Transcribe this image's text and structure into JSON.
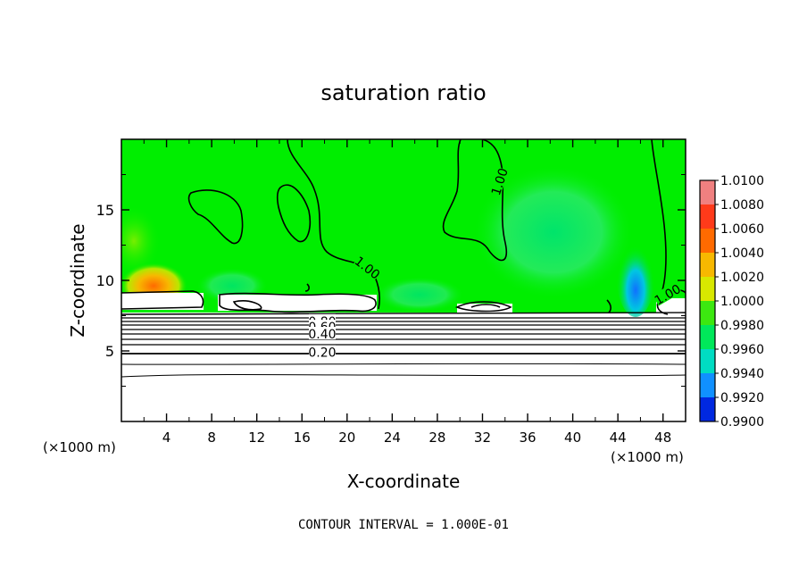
{
  "chart_data": {
    "type": "heatmap",
    "title": "saturation ratio",
    "xlabel": "X-coordinate",
    "ylabel": "Z-coordinate",
    "x_unit": "(×1000 m)",
    "x_unit_right": "(×1000 m)",
    "xlim": [
      0,
      50
    ],
    "ylim": [
      0,
      20
    ],
    "x_ticks": [
      4,
      8,
      12,
      16,
      20,
      24,
      28,
      32,
      36,
      40,
      44,
      48
    ],
    "y_ticks": [
      5,
      10,
      15
    ],
    "footer": "CONTOUR INTERVAL = 1.000E-01",
    "colorbar": {
      "levels": [
        1.01,
        1.008,
        1.006,
        1.004,
        1.002,
        1.0,
        0.998,
        0.996,
        0.994,
        0.992,
        0.99
      ],
      "labels": [
        "1.0100",
        "1.0080",
        "1.0060",
        "1.0040",
        "1.0020",
        "1.0000",
        "0.9980",
        "0.9960",
        "0.9940",
        "0.9920",
        "0.9900"
      ],
      "colors": [
        "#f08080",
        "#ff3a1a",
        "#ff6a00",
        "#f7b800",
        "#d8e800",
        "#3ce810",
        "#00e85a",
        "#00dcc2",
        "#1090ff",
        "#0028e0",
        "#6a10b0"
      ]
    },
    "contour_labels": [
      {
        "text": "1.00",
        "x": 33.5,
        "z": 17.0
      },
      {
        "text": "1.00",
        "x": 21.8,
        "z": 10.9
      },
      {
        "text": "1.00",
        "x": 48.4,
        "z": 9.0
      },
      {
        "text": "0.80",
        "x": 17.8,
        "z": 7.1
      },
      {
        "text": "0.60",
        "x": 17.8,
        "z": 6.7
      },
      {
        "text": "0.40",
        "x": 17.8,
        "z": 6.2
      },
      {
        "text": "0.20",
        "x": 17.8,
        "z": 4.9
      }
    ]
  },
  "colors": {
    "background": "#ffffff",
    "field": "#00ee00",
    "contour": "#000000"
  }
}
